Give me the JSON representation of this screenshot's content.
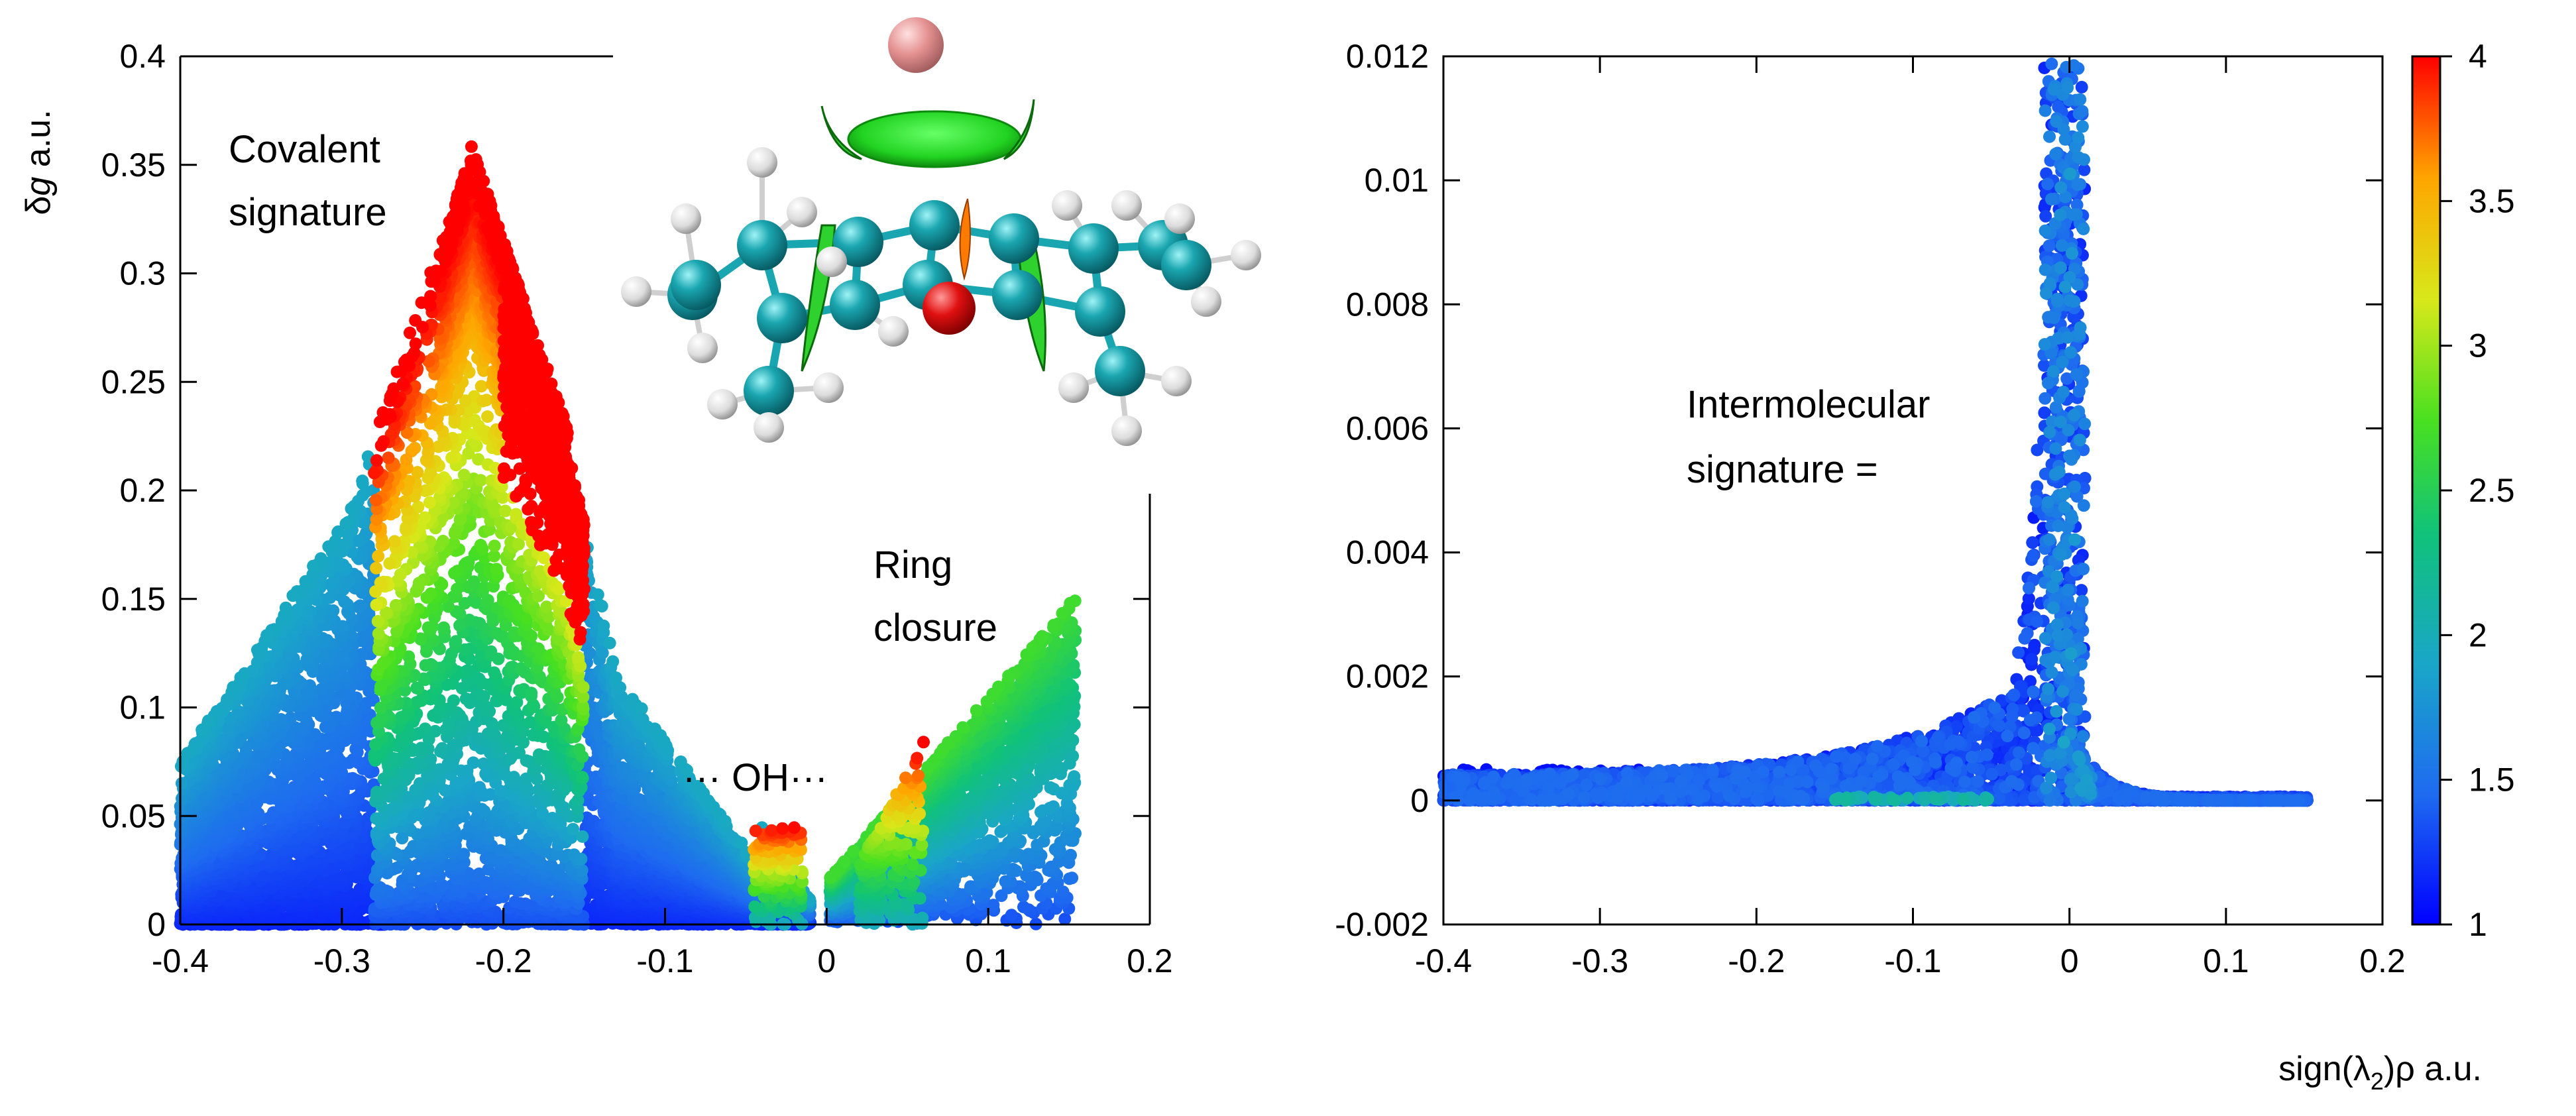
{
  "chart_data": [
    {
      "type": "scatter",
      "panel": "left",
      "ylabel_italic": "g",
      "ylabel_prefix": "δ",
      "ylabel_suffix": " a.u.",
      "xlabel": "",
      "xlim": [
        -0.4,
        0.2
      ],
      "ylim": [
        0,
        0.4
      ],
      "xticks": [
        "-0.4",
        "-0.3",
        "-0.2",
        "-0.1",
        "0",
        "0.1",
        "0.2"
      ],
      "yticks": [
        "0",
        "0.05",
        "0.1",
        "0.15",
        "0.2",
        "0.25",
        "0.3",
        "0.35",
        "0.4"
      ],
      "grid": false,
      "annotations": {
        "covalent_line1": "Covalent",
        "covalent_line2": "signature",
        "ring_line1": "Ring",
        "ring_line2": "closure",
        "oh": "··· OH···"
      },
      "features": {
        "main_peak": {
          "x": -0.22,
          "y": 0.36
        },
        "secondary_peak": {
          "x": -0.18,
          "y": 0.31
        },
        "right_wing_max": {
          "x": 0.15,
          "y": 0.15
        },
        "oh_left": {
          "x": -0.035,
          "y": 0.045
        },
        "oh_right": {
          "x": 0.055,
          "y": 0.087
        }
      },
      "color_encoding": "same scale as right colorbar (1 to 4)"
    },
    {
      "type": "scatter",
      "panel": "right",
      "xlabel": "sign(λ2)ρ a.u.",
      "xlabel_pre": "sign(λ",
      "xlabel_sub": "2",
      "xlabel_post": ")ρ a.u.",
      "ylabel": "",
      "xlim": [
        -0.4,
        0.2
      ],
      "ylim": [
        -0.002,
        0.012
      ],
      "xticks": [
        "-0.4",
        "-0.3",
        "-0.2",
        "-0.1",
        "0",
        "0.1",
        "0.2"
      ],
      "yticks": [
        "-0.002",
        "0",
        "0.002",
        "0.004",
        "0.006",
        "0.008",
        "0.01",
        "0.012"
      ],
      "grid": false,
      "annotations": {
        "inter_line1": "Intermolecular",
        "inter_line2": "signature ="
      },
      "features": {
        "spike": {
          "x": -0.01,
          "y": 0.012
        },
        "baseline_y": 0.0,
        "right_tail_end": {
          "x": 0.15,
          "y": 0.0
        }
      },
      "colorbar": {
        "min": 1,
        "max": 4,
        "ticks": [
          "1",
          "1.5",
          "2",
          "2.5",
          "3",
          "3.5",
          "4"
        ],
        "colors": [
          "#0000ff",
          "#1e6bf0",
          "#1aa6c8",
          "#10c27a",
          "#48e020",
          "#d8e81a",
          "#ffa500",
          "#ff0000"
        ]
      }
    }
  ],
  "inset": {
    "description_icon": "molecule-isosurface-icon",
    "atom_colors": {
      "carbon": "#1aa6b0",
      "hydrogen": "#e8e8e8",
      "oxygen": "#e01010",
      "metal": "#e49090",
      "isosurface": "#22d322"
    }
  }
}
